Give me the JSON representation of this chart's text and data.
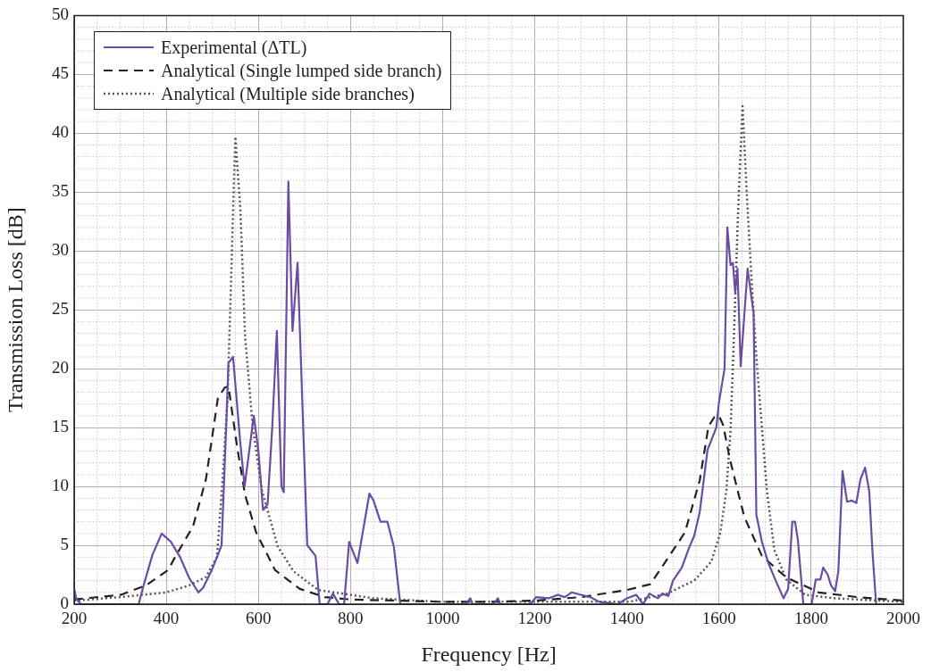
{
  "chart_data": {
    "type": "line",
    "xlabel": "Frequency [Hz]",
    "ylabel": "Transmission Loss [dB]",
    "xlim": [
      200,
      2000
    ],
    "xticks": [
      200,
      400,
      600,
      800,
      1000,
      1200,
      1400,
      1600,
      1800,
      2000
    ],
    "ylim": [
      0,
      50
    ],
    "yticks": [
      0,
      5,
      10,
      15,
      20,
      25,
      30,
      35,
      40,
      45,
      50
    ],
    "grid": true,
    "legend": "top left",
    "marker": "none",
    "series": [
      {
        "name": "Experimental (ΔTL)",
        "color": "#6a4ca3",
        "line_style": "solid",
        "x": [
          200,
          205,
          215,
          340,
          350,
          370,
          390,
          410,
          430,
          450,
          470,
          480,
          500,
          520,
          530,
          535,
          545,
          560,
          570,
          590,
          600,
          610,
          620,
          630,
          640,
          650,
          655,
          665,
          674,
          685,
          706,
          724,
          733,
          750,
          762,
          775,
          786,
          797,
          815,
          841,
          850,
          865,
          880,
          894,
          908,
          1050,
          1060,
          1065,
          1110,
          1120,
          1125,
          1190,
          1203,
          1230,
          1250,
          1265,
          1280,
          1300,
          1320,
          1340,
          1380,
          1400,
          1420,
          1435,
          1449,
          1467,
          1477,
          1490,
          1500,
          1519,
          1536,
          1546,
          1558,
          1575,
          1587,
          1594,
          1600,
          1612,
          1618,
          1625,
          1630,
          1635,
          1640,
          1647,
          1662,
          1675,
          1681,
          1693,
          1707,
          1723,
          1740,
          1750,
          1759,
          1765,
          1771,
          1783,
          1801,
          1810,
          1820,
          1826,
          1836,
          1843,
          1852,
          1859,
          1868,
          1878,
          1888,
          1898,
          1907,
          1917,
          1926,
          1933,
          1941
        ],
        "values": [
          1.3,
          0.4,
          0,
          0,
          1.5,
          4.2,
          6,
          5.3,
          4,
          2.2,
          1,
          1.4,
          3,
          5,
          15,
          20.5,
          21,
          14,
          10,
          16,
          13,
          8,
          8.5,
          15,
          23.2,
          10,
          9.5,
          35.9,
          23.2,
          29,
          5,
          4.1,
          0,
          0,
          0.9,
          0,
          0,
          5.3,
          3.5,
          9.4,
          8.8,
          7,
          7,
          4.9,
          0,
          0,
          0.5,
          0,
          0,
          0.5,
          0,
          0,
          0.6,
          0.5,
          0.8,
          0.6,
          1,
          0.8,
          0.6,
          0.2,
          0,
          0.5,
          0.8,
          0,
          0.9,
          0.5,
          0.9,
          0.7,
          2,
          3.1,
          4.9,
          5.8,
          7.8,
          13.1,
          14.3,
          15,
          17.2,
          20,
          32,
          28.8,
          29,
          26.5,
          28.5,
          20.2,
          28.5,
          24.7,
          7.6,
          5.3,
          3.5,
          2,
          0.5,
          1.3,
          7,
          7,
          5.5,
          0,
          0,
          2.1,
          2.1,
          3.1,
          2.5,
          1.6,
          1.1,
          2.8,
          11.3,
          8.7,
          8.8,
          8.6,
          10.6,
          11.6,
          9.6,
          4.5,
          0
        ]
      },
      {
        "name": "Analytical (Single lumped side branch)",
        "color": "#222222",
        "line_style": "dashed",
        "x": [
          200,
          302,
          356,
          404,
          419,
          458,
          486,
          503,
          512,
          527,
          535,
          554,
          571,
          595,
          636,
          690,
          744,
          800,
          900,
          1000,
          1100,
          1200,
          1300,
          1400,
          1451,
          1487,
          1526,
          1558,
          1577,
          1590,
          1600,
          1609,
          1623,
          1642,
          1655,
          1693,
          1745,
          1816,
          1900,
          2000
        ],
        "values": [
          0.4,
          0.8,
          1.6,
          2.9,
          4,
          6.6,
          10.6,
          15.1,
          17.5,
          18.4,
          18.5,
          13.3,
          9.3,
          6.1,
          2.9,
          1.3,
          0.6,
          0.4,
          0.3,
          0.2,
          0.2,
          0.3,
          0.6,
          1.2,
          1.7,
          3.8,
          6.1,
          10.5,
          15.1,
          15.9,
          16,
          15.2,
          12.4,
          9.4,
          7.4,
          4.1,
          2.3,
          1,
          0.6,
          0.3
        ]
      },
      {
        "name": "Analytical (Multiple side branches)",
        "color": "#555555",
        "line_style": "dotted",
        "x": [
          200,
          300,
          400,
          450,
          486,
          510,
          520,
          533,
          539,
          547,
          550,
          561,
          571,
          588,
          608,
          642,
          676,
          730,
          850,
          1000,
          1300,
          1405,
          1487,
          1546,
          1583,
          1603,
          1616,
          1625,
          1632,
          1641,
          1651,
          1660,
          1670,
          1681,
          1691,
          1704,
          1720,
          1746,
          1787,
          1852,
          2000
        ],
        "values": [
          0.3,
          0.6,
          1,
          1.6,
          2.3,
          4,
          9.3,
          17.4,
          25.3,
          36,
          39.7,
          33.4,
          22.8,
          14.9,
          9.6,
          4.9,
          2.8,
          1.2,
          0.5,
          0.2,
          0.2,
          0.2,
          0.9,
          2,
          3.6,
          6.1,
          9.7,
          14.8,
          22.4,
          33,
          42.3,
          35,
          28,
          21,
          16,
          9.6,
          4.6,
          2.1,
          0.8,
          0.5,
          0.2
        ]
      }
    ]
  }
}
